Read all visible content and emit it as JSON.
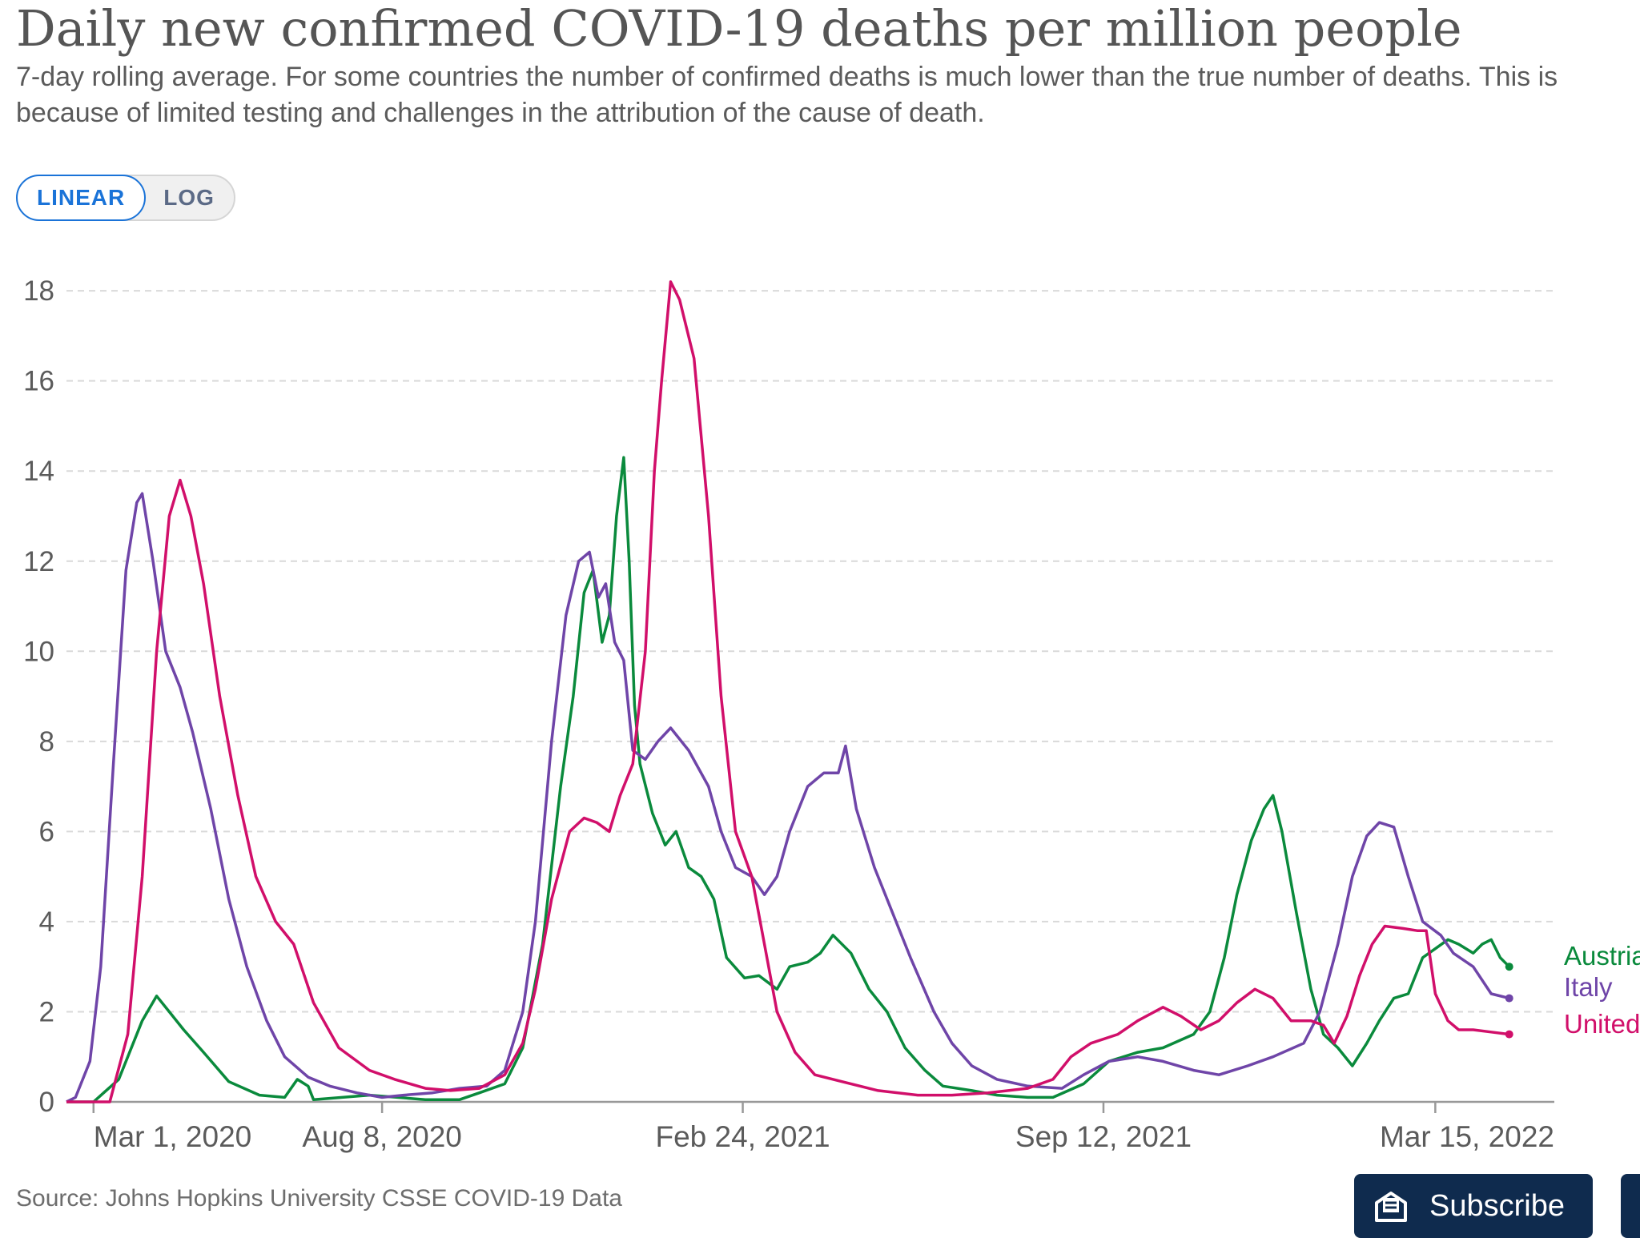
{
  "header": {
    "title": "Daily new confirmed COVID-19 deaths per million people",
    "subtitle": "7-day rolling average. For some countries the number of confirmed deaths is much lower than the true number of deaths. This is because of limited testing and challenges in the attribution of the cause of death."
  },
  "scale_toggle": {
    "linear_label": "LINEAR",
    "log_label": "LOG",
    "selected": "LINEAR"
  },
  "footer": {
    "source": "Source: Johns Hopkins University CSSE COVID-19 Data",
    "subscribe_label": "Subscribe"
  },
  "colors": {
    "austria": "#0a8a3c",
    "italy": "#6f45a8",
    "united": "#d10f6a",
    "grid": "#d9d9d9",
    "axis": "#999999",
    "button": "#0f2b4e",
    "accent": "#1a73d8"
  },
  "icons": {
    "subscribe": "envelope-newsletter-icon"
  },
  "chart_data": {
    "type": "line",
    "title": "Daily new confirmed COVID-19 deaths per million people",
    "xlabel": "",
    "ylabel": "",
    "x_ticks": [
      "Mar 1, 2020",
      "Aug 8, 2020",
      "Feb 24, 2021",
      "Sep 12, 2021",
      "Mar 15, 2022"
    ],
    "y_ticks": [
      "0",
      "2",
      "4",
      "6",
      "8",
      "10",
      "12",
      "14",
      "16",
      "18"
    ],
    "xlim": [
      "2020-02-15",
      "2022-05-20"
    ],
    "ylim": [
      0,
      18.5
    ],
    "grid": "horizontal dashed",
    "series": [
      {
        "name": "Austria",
        "label": "Austria",
        "points": [
          [
            "2020-02-15",
            0
          ],
          [
            "2020-03-01",
            0
          ],
          [
            "2020-03-15",
            0.5
          ],
          [
            "2020-03-28",
            1.8
          ],
          [
            "2020-04-05",
            2.35
          ],
          [
            "2020-04-12",
            2.0
          ],
          [
            "2020-04-20",
            1.6
          ],
          [
            "2020-05-01",
            1.1
          ],
          [
            "2020-05-15",
            0.45
          ],
          [
            "2020-06-01",
            0.15
          ],
          [
            "2020-06-15",
            0.1
          ],
          [
            "2020-06-22",
            0.5
          ],
          [
            "2020-06-28",
            0.35
          ],
          [
            "2020-07-01",
            0.05
          ],
          [
            "2020-08-01",
            0.15
          ],
          [
            "2020-09-01",
            0.05
          ],
          [
            "2020-09-20",
            0.05
          ],
          [
            "2020-10-01",
            0.2
          ],
          [
            "2020-10-15",
            0.4
          ],
          [
            "2020-10-25",
            1.2
          ],
          [
            "2020-11-05",
            3.5
          ],
          [
            "2020-11-15",
            7.0
          ],
          [
            "2020-11-22",
            9.0
          ],
          [
            "2020-11-28",
            11.3
          ],
          [
            "2020-12-03",
            11.8
          ],
          [
            "2020-12-08",
            10.2
          ],
          [
            "2020-12-12",
            10.8
          ],
          [
            "2020-12-16",
            13.0
          ],
          [
            "2020-12-20",
            14.3
          ],
          [
            "2020-12-23",
            12.0
          ],
          [
            "2020-12-26",
            8.8
          ],
          [
            "2020-12-29",
            7.5
          ],
          [
            "2021-01-05",
            6.4
          ],
          [
            "2021-01-12",
            5.7
          ],
          [
            "2021-01-18",
            6.0
          ],
          [
            "2021-01-25",
            5.2
          ],
          [
            "2021-02-01",
            5.0
          ],
          [
            "2021-02-08",
            4.5
          ],
          [
            "2021-02-15",
            3.2
          ],
          [
            "2021-02-25",
            2.75
          ],
          [
            "2021-03-05",
            2.8
          ],
          [
            "2021-03-15",
            2.5
          ],
          [
            "2021-03-22",
            3.0
          ],
          [
            "2021-04-01",
            3.1
          ],
          [
            "2021-04-08",
            3.3
          ],
          [
            "2021-04-15",
            3.7
          ],
          [
            "2021-04-25",
            3.3
          ],
          [
            "2021-05-05",
            2.5
          ],
          [
            "2021-05-15",
            2.0
          ],
          [
            "2021-05-25",
            1.2
          ],
          [
            "2021-06-05",
            0.7
          ],
          [
            "2021-06-15",
            0.35
          ],
          [
            "2021-07-01",
            0.25
          ],
          [
            "2021-07-15",
            0.15
          ],
          [
            "2021-08-01",
            0.1
          ],
          [
            "2021-08-15",
            0.1
          ],
          [
            "2021-09-01",
            0.4
          ],
          [
            "2021-09-15",
            0.9
          ],
          [
            "2021-10-01",
            1.1
          ],
          [
            "2021-10-15",
            1.2
          ],
          [
            "2021-11-01",
            1.5
          ],
          [
            "2021-11-10",
            2.0
          ],
          [
            "2021-11-18",
            3.2
          ],
          [
            "2021-11-25",
            4.6
          ],
          [
            "2021-12-03",
            5.8
          ],
          [
            "2021-12-10",
            6.5
          ],
          [
            "2021-12-15",
            6.8
          ],
          [
            "2021-12-20",
            6.0
          ],
          [
            "2021-12-28",
            4.2
          ],
          [
            "2022-01-05",
            2.5
          ],
          [
            "2022-01-12",
            1.5
          ],
          [
            "2022-01-20",
            1.2
          ],
          [
            "2022-01-28",
            0.8
          ],
          [
            "2022-02-05",
            1.3
          ],
          [
            "2022-02-12",
            1.8
          ],
          [
            "2022-02-20",
            2.3
          ],
          [
            "2022-02-28",
            2.4
          ],
          [
            "2022-03-08",
            3.2
          ],
          [
            "2022-03-15",
            3.4
          ],
          [
            "2022-03-22",
            3.6
          ],
          [
            "2022-03-28",
            3.5
          ],
          [
            "2022-04-05",
            3.3
          ],
          [
            "2022-04-10",
            3.5
          ],
          [
            "2022-04-15",
            3.6
          ],
          [
            "2022-04-20",
            3.2
          ],
          [
            "2022-04-25",
            3.0
          ]
        ]
      },
      {
        "name": "Italy",
        "label": "Italy",
        "points": [
          [
            "2020-02-15",
            0
          ],
          [
            "2020-02-20",
            0.1
          ],
          [
            "2020-02-28",
            0.9
          ],
          [
            "2020-03-05",
            3.0
          ],
          [
            "2020-03-12",
            7.5
          ],
          [
            "2020-03-19",
            11.8
          ],
          [
            "2020-03-25",
            13.3
          ],
          [
            "2020-03-28",
            13.5
          ],
          [
            "2020-04-03",
            12.0
          ],
          [
            "2020-04-10",
            10.0
          ],
          [
            "2020-04-18",
            9.2
          ],
          [
            "2020-04-25",
            8.2
          ],
          [
            "2020-05-05",
            6.5
          ],
          [
            "2020-05-15",
            4.5
          ],
          [
            "2020-05-25",
            3.0
          ],
          [
            "2020-06-05",
            1.8
          ],
          [
            "2020-06-15",
            1.0
          ],
          [
            "2020-06-28",
            0.55
          ],
          [
            "2020-07-10",
            0.35
          ],
          [
            "2020-07-25",
            0.2
          ],
          [
            "2020-08-08",
            0.1
          ],
          [
            "2020-08-20",
            0.15
          ],
          [
            "2020-09-05",
            0.2
          ],
          [
            "2020-09-20",
            0.3
          ],
          [
            "2020-10-05",
            0.35
          ],
          [
            "2020-10-15",
            0.7
          ],
          [
            "2020-10-25",
            2.0
          ],
          [
            "2020-11-01",
            4.0
          ],
          [
            "2020-11-10",
            8.0
          ],
          [
            "2020-11-18",
            10.8
          ],
          [
            "2020-11-25",
            12.0
          ],
          [
            "2020-12-01",
            12.2
          ],
          [
            "2020-12-06",
            11.2
          ],
          [
            "2020-12-10",
            11.5
          ],
          [
            "2020-12-15",
            10.2
          ],
          [
            "2020-12-20",
            9.8
          ],
          [
            "2020-12-25",
            7.8
          ],
          [
            "2021-01-01",
            7.6
          ],
          [
            "2021-01-08",
            8.0
          ],
          [
            "2021-01-15",
            8.3
          ],
          [
            "2021-01-25",
            7.8
          ],
          [
            "2021-02-05",
            7.0
          ],
          [
            "2021-02-12",
            6.0
          ],
          [
            "2021-02-20",
            5.2
          ],
          [
            "2021-03-01",
            5.0
          ],
          [
            "2021-03-08",
            4.6
          ],
          [
            "2021-03-15",
            5.0
          ],
          [
            "2021-03-22",
            6.0
          ],
          [
            "2021-04-01",
            7.0
          ],
          [
            "2021-04-10",
            7.3
          ],
          [
            "2021-04-18",
            7.3
          ],
          [
            "2021-04-22",
            7.9
          ],
          [
            "2021-04-28",
            6.5
          ],
          [
            "2021-05-08",
            5.2
          ],
          [
            "2021-05-18",
            4.2
          ],
          [
            "2021-05-28",
            3.2
          ],
          [
            "2021-06-10",
            2.0
          ],
          [
            "2021-06-20",
            1.3
          ],
          [
            "2021-07-01",
            0.8
          ],
          [
            "2021-07-15",
            0.5
          ],
          [
            "2021-08-01",
            0.35
          ],
          [
            "2021-08-20",
            0.3
          ],
          [
            "2021-09-01",
            0.6
          ],
          [
            "2021-09-15",
            0.9
          ],
          [
            "2021-10-01",
            1.0
          ],
          [
            "2021-10-15",
            0.9
          ],
          [
            "2021-11-01",
            0.7
          ],
          [
            "2021-11-15",
            0.6
          ],
          [
            "2021-12-01",
            0.8
          ],
          [
            "2021-12-15",
            1.0
          ],
          [
            "2022-01-01",
            1.3
          ],
          [
            "2022-01-10",
            2.0
          ],
          [
            "2022-01-20",
            3.5
          ],
          [
            "2022-01-28",
            5.0
          ],
          [
            "2022-02-05",
            5.9
          ],
          [
            "2022-02-12",
            6.2
          ],
          [
            "2022-02-20",
            6.1
          ],
          [
            "2022-02-28",
            5.0
          ],
          [
            "2022-03-08",
            4.0
          ],
          [
            "2022-03-18",
            3.7
          ],
          [
            "2022-03-25",
            3.3
          ],
          [
            "2022-04-05",
            3.0
          ],
          [
            "2022-04-15",
            2.4
          ],
          [
            "2022-04-25",
            2.3
          ]
        ]
      },
      {
        "name": "United States",
        "label": "United",
        "points": [
          [
            "2020-02-15",
            0
          ],
          [
            "2020-03-10",
            0
          ],
          [
            "2020-03-20",
            1.5
          ],
          [
            "2020-03-28",
            5.0
          ],
          [
            "2020-04-05",
            10.0
          ],
          [
            "2020-04-12",
            13.0
          ],
          [
            "2020-04-18",
            13.8
          ],
          [
            "2020-04-24",
            13.0
          ],
          [
            "2020-05-01",
            11.5
          ],
          [
            "2020-05-10",
            9.0
          ],
          [
            "2020-05-20",
            6.8
          ],
          [
            "2020-05-30",
            5.0
          ],
          [
            "2020-06-10",
            4.0
          ],
          [
            "2020-06-20",
            3.5
          ],
          [
            "2020-07-01",
            2.2
          ],
          [
            "2020-07-15",
            1.2
          ],
          [
            "2020-08-01",
            0.7
          ],
          [
            "2020-08-15",
            0.5
          ],
          [
            "2020-09-01",
            0.3
          ],
          [
            "2020-09-15",
            0.25
          ],
          [
            "2020-10-01",
            0.3
          ],
          [
            "2020-10-15",
            0.6
          ],
          [
            "2020-10-25",
            1.3
          ],
          [
            "2020-11-01",
            2.5
          ],
          [
            "2020-11-10",
            4.5
          ],
          [
            "2020-11-20",
            6.0
          ],
          [
            "2020-11-28",
            6.3
          ],
          [
            "2020-12-05",
            6.2
          ],
          [
            "2020-12-12",
            6.0
          ],
          [
            "2020-12-18",
            6.8
          ],
          [
            "2020-12-25",
            7.5
          ],
          [
            "2021-01-01",
            10.0
          ],
          [
            "2021-01-06",
            14.0
          ],
          [
            "2021-01-10",
            16.0
          ],
          [
            "2021-01-15",
            18.2
          ],
          [
            "2021-01-20",
            17.8
          ],
          [
            "2021-01-28",
            16.5
          ],
          [
            "2021-02-05",
            13.0
          ],
          [
            "2021-02-12",
            9.0
          ],
          [
            "2021-02-20",
            6.0
          ],
          [
            "2021-03-01",
            5.0
          ],
          [
            "2021-03-08",
            3.5
          ],
          [
            "2021-03-15",
            2.0
          ],
          [
            "2021-03-25",
            1.1
          ],
          [
            "2021-04-05",
            0.6
          ],
          [
            "2021-04-20",
            0.45
          ],
          [
            "2021-05-10",
            0.25
          ],
          [
            "2021-06-01",
            0.15
          ],
          [
            "2021-06-20",
            0.15
          ],
          [
            "2021-07-10",
            0.2
          ],
          [
            "2021-08-01",
            0.3
          ],
          [
            "2021-08-15",
            0.5
          ],
          [
            "2021-08-25",
            1.0
          ],
          [
            "2021-09-05",
            1.3
          ],
          [
            "2021-09-20",
            1.5
          ],
          [
            "2021-10-01",
            1.8
          ],
          [
            "2021-10-15",
            2.1
          ],
          [
            "2021-10-25",
            1.9
          ],
          [
            "2021-11-05",
            1.6
          ],
          [
            "2021-11-15",
            1.8
          ],
          [
            "2021-11-25",
            2.2
          ],
          [
            "2021-12-05",
            2.5
          ],
          [
            "2021-12-15",
            2.3
          ],
          [
            "2021-12-25",
            1.8
          ],
          [
            "2022-01-05",
            1.8
          ],
          [
            "2022-01-12",
            1.7
          ],
          [
            "2022-01-18",
            1.3
          ],
          [
            "2022-01-25",
            1.9
          ],
          [
            "2022-02-01",
            2.8
          ],
          [
            "2022-02-08",
            3.5
          ],
          [
            "2022-02-15",
            3.9
          ],
          [
            "2022-02-25",
            3.85
          ],
          [
            "2022-03-05",
            3.8
          ],
          [
            "2022-03-10",
            3.8
          ],
          [
            "2022-03-15",
            2.4
          ],
          [
            "2022-03-22",
            1.8
          ],
          [
            "2022-03-28",
            1.6
          ],
          [
            "2022-04-05",
            1.6
          ],
          [
            "2022-04-15",
            1.55
          ],
          [
            "2022-04-25",
            1.5
          ]
        ]
      }
    ]
  }
}
